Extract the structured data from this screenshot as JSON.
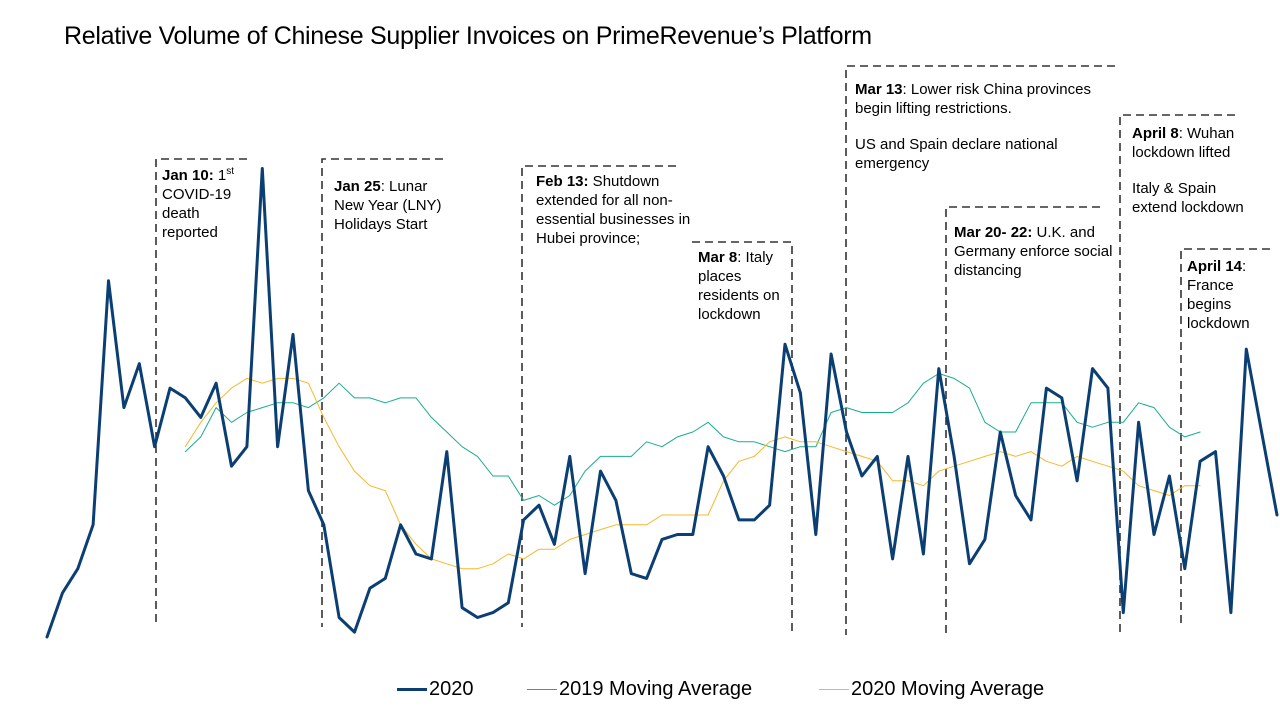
{
  "chart_data": {
    "type": "line",
    "title": "Relative Volume of Chinese Supplier Invoices on PrimeRevenue’s Platform",
    "xlabel": "",
    "ylabel": "",
    "ylim": [
      0,
      100
    ],
    "series": [
      {
        "name": "2020",
        "color": "#0b3f73",
        "start_index": 0,
        "values": [
          0,
          9,
          14,
          23,
          73,
          47,
          56,
          39,
          51,
          49,
          45,
          52,
          35,
          39,
          96,
          39,
          62,
          30,
          23,
          4,
          1,
          10,
          12,
          23,
          17,
          16,
          38,
          6,
          4,
          5,
          7,
          24,
          27,
          19,
          37,
          13,
          34,
          28,
          13,
          12,
          20,
          21,
          21,
          39,
          33,
          24,
          24,
          27,
          60,
          50,
          21,
          58,
          42,
          33,
          37,
          16,
          37,
          17,
          55,
          37,
          15,
          20,
          42,
          29,
          24,
          51,
          49,
          32,
          55,
          51,
          5,
          44,
          21,
          33,
          14,
          36,
          38,
          5,
          59,
          42,
          25
        ]
      },
      {
        "name": "2019 Moving Average",
        "color": "#1aad8d",
        "start_index": 9,
        "values": [
          38,
          41,
          47,
          44,
          46,
          47,
          48,
          48,
          47,
          49,
          52,
          49,
          49,
          48,
          49,
          49,
          45,
          42,
          39,
          37,
          33,
          33,
          28,
          29,
          27,
          29,
          34,
          37,
          37,
          37,
          40,
          39,
          41,
          42,
          44,
          41,
          40,
          40,
          39,
          38,
          39,
          39,
          46,
          47,
          46,
          46,
          46,
          48,
          52,
          54,
          53,
          51,
          44,
          42,
          42,
          48,
          48,
          48,
          44,
          43,
          44,
          44,
          48,
          47,
          43,
          41,
          42
        ]
      },
      {
        "name": "2020 Moving Average",
        "color": "#f5b82d",
        "start_index": 9,
        "values": [
          39,
          44,
          48,
          51,
          53,
          52,
          53,
          53,
          52,
          45,
          39,
          34,
          31,
          30,
          23,
          19,
          16,
          15,
          14,
          14,
          15,
          17,
          16,
          18,
          18,
          20,
          21,
          22,
          23,
          23,
          23,
          25,
          25,
          25,
          25,
          32,
          36,
          37,
          40,
          41,
          40,
          40,
          39,
          38,
          37,
          36,
          32,
          32,
          31,
          34,
          35,
          36,
          37,
          38,
          37,
          38,
          36,
          35,
          37,
          36,
          35,
          34,
          31,
          30,
          29,
          31,
          31
        ]
      }
    ],
    "annotations": [
      {
        "id": "jan10",
        "bold": "Jan 10:",
        "text": " 1",
        "sup": "st",
        "tail": " COVID-19 death reported"
      },
      {
        "id": "jan25",
        "bold": "Jan 25",
        "text": ": Lunar New Year (LNY) Holidays Start"
      },
      {
        "id": "feb13",
        "bold": "Feb 13:",
        "text": " Shutdown extended for all non-essential businesses in Hubei province;"
      },
      {
        "id": "mar8",
        "bold": "Mar 8",
        "text": ": Italy places residents on lockdown"
      },
      {
        "id": "mar13",
        "bold": "Mar 13",
        "text": ": Lower risk China provinces begin lifting restrictions.",
        "text2": "US and Spain declare national emergency"
      },
      {
        "id": "mar20",
        "bold": "Mar 20- 22:",
        "text": " U.K. and Germany enforce social distancing"
      },
      {
        "id": "apr8",
        "bold": "April 8",
        "text": ": Wuhan lockdown lifted",
        "text2": "Italy  & Spain extend lockdown"
      },
      {
        "id": "apr14",
        "bold": "April 14",
        "text": ": France begins lockdown"
      }
    ]
  }
}
